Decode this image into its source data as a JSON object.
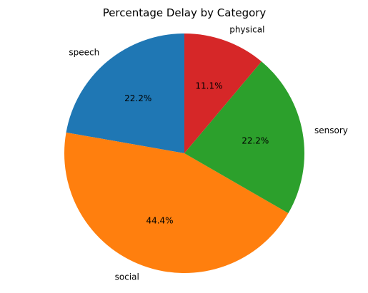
{
  "chart_data": {
    "type": "pie",
    "title": "Percentage Delay by Category",
    "start_angle_deg": 90,
    "direction": "counterclockwise",
    "slices": [
      {
        "label": "speech",
        "value": 22.2,
        "pct_label": "22.2%",
        "color": "#1f77b4"
      },
      {
        "label": "social",
        "value": 44.4,
        "pct_label": "44.4%",
        "color": "#ff7f0e"
      },
      {
        "label": "sensory",
        "value": 22.2,
        "pct_label": "22.2%",
        "color": "#2ca02c"
      },
      {
        "label": "physical",
        "value": 11.1,
        "pct_label": "11.1%",
        "color": "#d62728"
      }
    ]
  }
}
